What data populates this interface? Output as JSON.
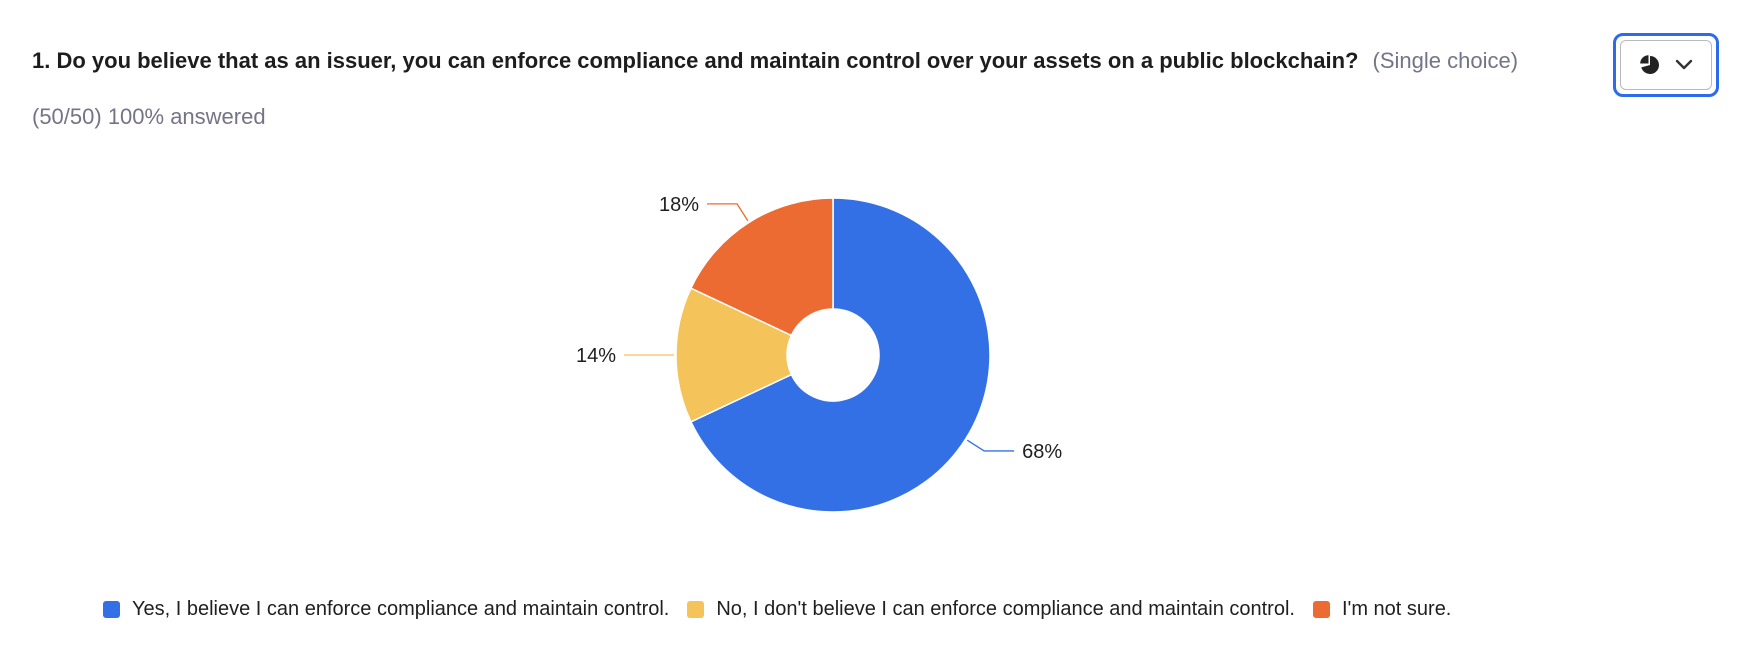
{
  "question": {
    "text": "1. Do you believe that as an issuer, you can enforce compliance and maintain control over your assets on a public blockchain?",
    "choice_type": "(Single choice)",
    "answered": "(50/50) 100% answered"
  },
  "chart_type_button": {
    "icon": "pie-chart-icon",
    "dropdown_icon": "chevron-down-icon"
  },
  "chart_data": {
    "type": "pie",
    "donut": true,
    "categories": [
      "Yes, I believe I can enforce compliance and maintain control.",
      "No, I don't believe I can enforce compliance and maintain control.",
      "I'm not sure."
    ],
    "values": [
      68,
      14,
      18
    ],
    "labels": [
      "68%",
      "14%",
      "18%"
    ],
    "colors": [
      "#3370e6",
      "#f4c35a",
      "#ec6b32"
    ],
    "legend_position": "bottom"
  }
}
